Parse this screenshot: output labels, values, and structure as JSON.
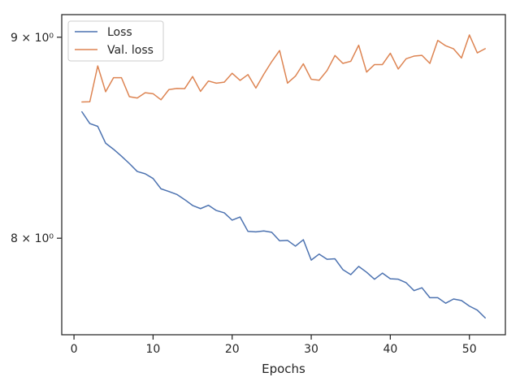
{
  "chart_data": {
    "type": "line",
    "title": "",
    "xlabel": "Epochs",
    "ylabel": "",
    "xlim": [
      -1.55,
      54.55
    ],
    "ylim": [
      7.56,
      9.12
    ],
    "yscale": "log",
    "x_ticks": [
      0,
      10,
      20,
      30,
      40,
      50
    ],
    "y_ticks": [
      {
        "value": 8,
        "label": "8 × 10⁰"
      },
      {
        "value": 9,
        "label": "9 × 10⁰"
      }
    ],
    "grid": false,
    "legend_position": "upper-left",
    "x": [
      1,
      2,
      3,
      4,
      5,
      6,
      7,
      8,
      9,
      10,
      11,
      12,
      13,
      14,
      15,
      16,
      17,
      18,
      19,
      20,
      21,
      22,
      23,
      24,
      25,
      26,
      27,
      28,
      29,
      30,
      31,
      32,
      33,
      34,
      35,
      36,
      37,
      38,
      39,
      40,
      41,
      42,
      43,
      44,
      45,
      46,
      47,
      48,
      49,
      50,
      51,
      52
    ],
    "series": [
      {
        "name": "Loss",
        "color": "#4c72b0",
        "values": [
          8.615,
          8.556,
          8.542,
          8.458,
          8.428,
          8.394,
          8.358,
          8.319,
          8.308,
          8.285,
          8.235,
          8.222,
          8.208,
          8.183,
          8.155,
          8.14,
          8.156,
          8.131,
          8.12,
          8.085,
          8.1,
          8.032,
          8.03,
          8.034,
          8.028,
          7.988,
          7.99,
          7.963,
          7.993,
          7.898,
          7.926,
          7.902,
          7.904,
          7.854,
          7.831,
          7.869,
          7.842,
          7.81,
          7.838,
          7.812,
          7.81,
          7.794,
          7.758,
          7.771,
          7.726,
          7.726,
          7.701,
          7.72,
          7.713,
          7.688,
          7.67,
          7.635
        ]
      },
      {
        "name": "Val. loss",
        "color": "#dd8452",
        "values": [
          8.665,
          8.666,
          8.85,
          8.717,
          8.789,
          8.789,
          8.692,
          8.685,
          8.712,
          8.707,
          8.676,
          8.728,
          8.734,
          8.733,
          8.795,
          8.719,
          8.772,
          8.761,
          8.766,
          8.812,
          8.775,
          8.805,
          8.736,
          8.807,
          8.872,
          8.93,
          8.761,
          8.797,
          8.861,
          8.781,
          8.776,
          8.826,
          8.904,
          8.863,
          8.874,
          8.958,
          8.818,
          8.857,
          8.857,
          8.916,
          8.834,
          8.887,
          8.901,
          8.905,
          8.863,
          8.983,
          8.955,
          8.939,
          8.891,
          9.012,
          8.918,
          8.94
        ]
      }
    ]
  }
}
